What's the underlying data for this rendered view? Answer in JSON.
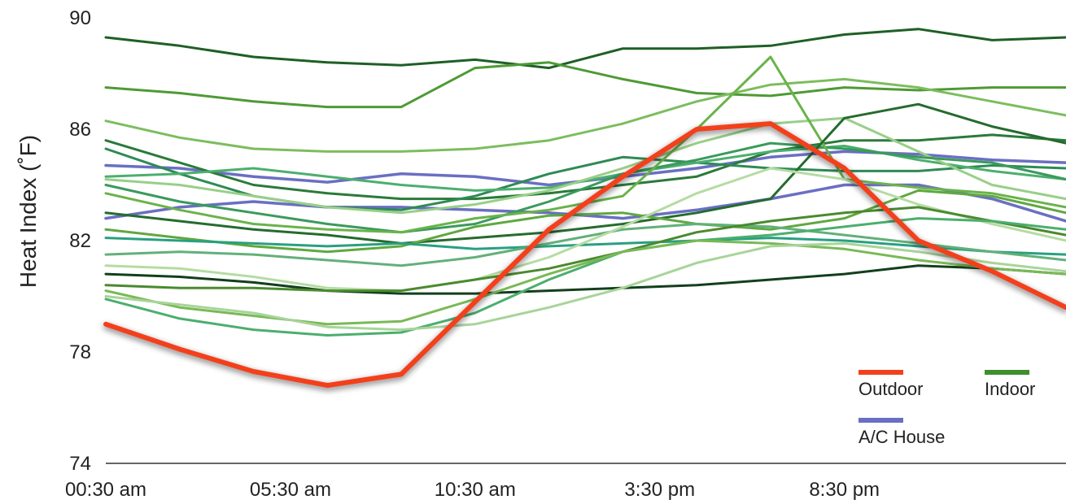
{
  "chart_data": {
    "type": "line",
    "title": "",
    "xlabel": "",
    "ylabel": "Heat Index (˚F)",
    "ylim": [
      74,
      90
    ],
    "xlim": [
      0,
      26
    ],
    "x_unit": "hours after 00:30 am",
    "y_ticks": [
      74,
      78,
      82,
      86,
      90
    ],
    "x_ticks": [
      {
        "value": 0,
        "label": "00:30 am"
      },
      {
        "value": 5,
        "label": "05:30 am"
      },
      {
        "value": 10,
        "label": "10:30 am"
      },
      {
        "value": 15,
        "label": "3:30 pm"
      },
      {
        "value": 20,
        "label": "8:30 pm"
      }
    ],
    "grid": false,
    "legend_position": "bottom-right",
    "legend": [
      {
        "label": "Outdoor",
        "color": "#f2401c"
      },
      {
        "label": "Indoor",
        "color": "#3f8f2f"
      },
      {
        "label": "A/C House",
        "color": "#6a6fc2"
      }
    ],
    "x": [
      0,
      2,
      4,
      6,
      8,
      10,
      12,
      14,
      16,
      18,
      20,
      22,
      24,
      26
    ],
    "series": [
      {
        "name": "Outdoor",
        "color": "#f2401c",
        "width": 6,
        "values": [
          79.0,
          78.1,
          77.3,
          76.8,
          77.2,
          79.8,
          82.4,
          84.3,
          86.0,
          86.2,
          84.6,
          82.0,
          80.9,
          79.6
        ]
      },
      {
        "color": "#6a6fc2",
        "width": 3.5,
        "values": [
          84.7,
          84.6,
          84.3,
          84.1,
          84.4,
          84.3,
          84.0,
          84.3,
          84.6,
          85.0,
          85.2,
          85.1,
          84.9,
          84.8
        ]
      },
      {
        "color": "#6a6fc2",
        "width": 3.5,
        "values": [
          82.8,
          83.2,
          83.4,
          83.2,
          83.2,
          83.1,
          83.0,
          82.8,
          83.1,
          83.5,
          84.0,
          84.0,
          83.5,
          82.7
        ]
      },
      {
        "color": "#1f5f25",
        "width": 3,
        "values": [
          89.3,
          89.0,
          88.6,
          88.4,
          88.3,
          88.5,
          88.2,
          88.9,
          88.9,
          89.0,
          89.4,
          89.6,
          89.2,
          89.3
        ]
      },
      {
        "color": "#4e9a35",
        "width": 3,
        "values": [
          87.5,
          87.3,
          87.0,
          86.8,
          86.8,
          88.2,
          88.4,
          87.8,
          87.3,
          87.2,
          87.5,
          87.4,
          87.5,
          87.5
        ]
      },
      {
        "color": "#7cbd5e",
        "width": 3,
        "values": [
          86.3,
          85.7,
          85.3,
          85.2,
          85.2,
          85.3,
          85.6,
          86.2,
          87.0,
          87.6,
          87.8,
          87.5,
          87.0,
          86.5
        ]
      },
      {
        "color": "#2a7a3a",
        "width": 3,
        "values": [
          85.6,
          84.8,
          84.0,
          83.7,
          83.5,
          83.5,
          83.7,
          84.0,
          84.3,
          85.2,
          85.6,
          85.6,
          85.8,
          85.6
        ]
      },
      {
        "color": "#2f8a55",
        "width": 3,
        "values": [
          85.3,
          84.4,
          83.6,
          83.2,
          83.1,
          83.6,
          84.4,
          85.0,
          84.8,
          84.6,
          84.5,
          84.5,
          84.7,
          84.6
        ]
      },
      {
        "color": "#4cae6e",
        "width": 3,
        "values": [
          84.3,
          84.4,
          84.6,
          84.3,
          84.0,
          83.8,
          83.9,
          84.4,
          84.8,
          85.2,
          85.4,
          84.9,
          84.5,
          84.2
        ]
      },
      {
        "color": "#98cf88",
        "width": 3,
        "values": [
          84.2,
          84.0,
          83.6,
          83.2,
          83.0,
          83.3,
          83.8,
          84.6,
          85.5,
          86.2,
          86.4,
          85.2,
          84.0,
          83.5
        ]
      },
      {
        "color": "#3a9a5c",
        "width": 3,
        "values": [
          84.0,
          83.4,
          83.0,
          82.6,
          82.3,
          82.6,
          83.4,
          84.4,
          84.9,
          85.5,
          85.3,
          85.0,
          84.8,
          84.2
        ]
      },
      {
        "color": "#6ab34a",
        "width": 3,
        "values": [
          83.7,
          83.1,
          82.6,
          82.4,
          82.3,
          82.8,
          83.1,
          83.6,
          86.0,
          88.6,
          84.2,
          83.9,
          83.7,
          83.2
        ]
      },
      {
        "color": "#256b2e",
        "width": 3,
        "values": [
          83.0,
          82.7,
          82.4,
          82.2,
          81.9,
          82.1,
          82.3,
          82.6,
          83.0,
          83.5,
          86.4,
          86.9,
          86.1,
          85.5
        ]
      },
      {
        "color": "#5fa840",
        "width": 3,
        "values": [
          82.4,
          82.1,
          81.8,
          81.6,
          81.8,
          82.5,
          82.9,
          83.0,
          82.6,
          82.4,
          82.8,
          83.8,
          83.6,
          83.0
        ]
      },
      {
        "color": "#28a080",
        "width": 3,
        "values": [
          82.1,
          82.0,
          81.9,
          81.8,
          81.9,
          81.7,
          81.8,
          81.9,
          82.0,
          82.1,
          82.0,
          81.8,
          81.6,
          81.5
        ]
      },
      {
        "color": "#62b07a",
        "width": 3,
        "values": [
          81.5,
          81.6,
          81.5,
          81.3,
          81.1,
          81.4,
          81.9,
          82.4,
          82.6,
          82.5,
          82.2,
          81.9,
          81.6,
          81.3
        ]
      },
      {
        "color": "#b5dca2",
        "width": 3,
        "values": [
          81.1,
          81.0,
          80.7,
          80.3,
          80.2,
          80.6,
          81.4,
          82.5,
          83.7,
          84.6,
          84.2,
          83.3,
          82.6,
          82.0
        ]
      },
      {
        "color": "#123f1c",
        "width": 3,
        "values": [
          80.8,
          80.7,
          80.5,
          80.2,
          80.1,
          80.1,
          80.2,
          80.3,
          80.4,
          80.6,
          80.8,
          81.1,
          81.0,
          80.8
        ]
      },
      {
        "color": "#4a8a2f",
        "width": 3,
        "values": [
          80.4,
          80.3,
          80.3,
          80.2,
          80.2,
          80.6,
          81.0,
          81.6,
          82.3,
          82.7,
          83.0,
          83.2,
          82.7,
          82.2
        ]
      },
      {
        "color": "#4cae6e",
        "width": 3,
        "values": [
          79.9,
          79.2,
          78.8,
          78.6,
          78.7,
          79.4,
          80.6,
          81.6,
          82.0,
          82.2,
          82.5,
          82.8,
          82.7,
          82.4
        ]
      },
      {
        "color": "#79b956",
        "width": 3,
        "values": [
          80.2,
          79.6,
          79.3,
          79.0,
          79.1,
          79.9,
          80.8,
          81.6,
          82.0,
          81.9,
          81.7,
          81.3,
          81.0,
          80.8
        ]
      },
      {
        "color": "#a8d49a",
        "width": 3,
        "values": [
          80.0,
          79.7,
          79.4,
          78.9,
          78.8,
          79.0,
          79.6,
          80.3,
          81.2,
          81.8,
          81.9,
          81.6,
          81.2,
          80.9
        ]
      }
    ]
  }
}
